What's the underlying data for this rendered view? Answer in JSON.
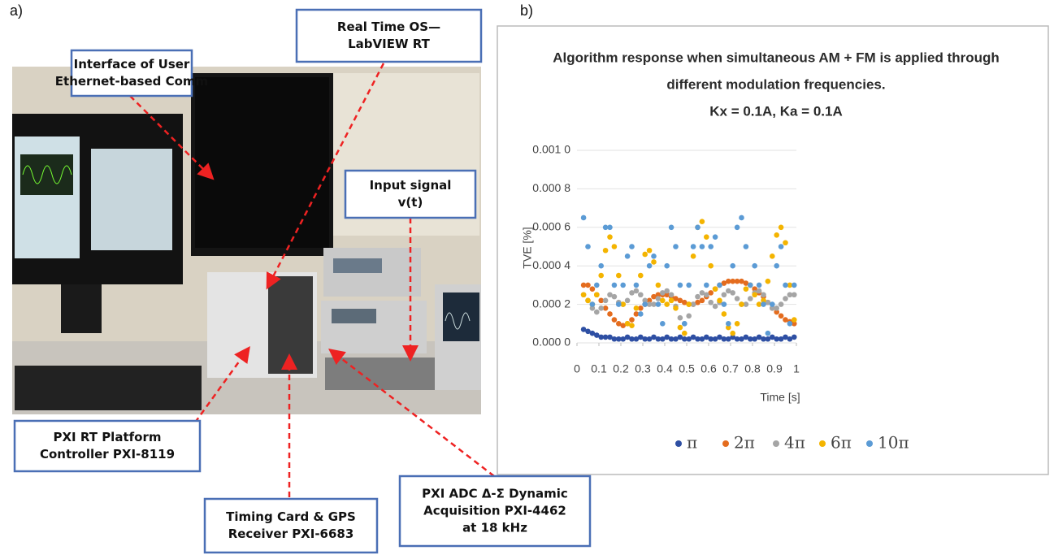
{
  "panels": [
    "a)",
    "b)"
  ],
  "annotations": [
    {
      "lines": [
        "Interface of User",
        "Ethernet-based Comm"
      ]
    },
    {
      "lines": [
        "Real Time OS—",
        "LabVIEW RT"
      ]
    },
    {
      "lines": [
        "Input signal",
        "v(t)"
      ]
    },
    {
      "lines": [
        "PXI RT Platform",
        "Controller PXI-8119"
      ]
    },
    {
      "lines": [
        "Timing Card & GPS",
        "Receiver PXI-6683"
      ]
    },
    {
      "lines": [
        "PXI ADC   Δ-Σ Dynamic",
        "Acquisition PXI-4462",
        "at 18 kHz"
      ]
    }
  ],
  "chart_data": {
    "type": "scatter",
    "title": [
      "Algorithm response when simultaneous AM + FM is applied through",
      "different modulation frequencies.",
      "Kx = 0.1A, Ka = 0.1A"
    ],
    "xlabel": "Time [s]",
    "ylabel": "TVE  [%]",
    "xlim": [
      0,
      1
    ],
    "xticks": [
      0,
      0.1,
      0.2,
      0.3,
      0.4,
      0.5,
      0.6,
      0.7,
      0.8,
      0.9,
      1
    ],
    "ylim": [
      0,
      0.001
    ],
    "yticks": [
      {
        "value": 0,
        "label": "0.000 0"
      },
      {
        "value": 0.0002,
        "label": "0.000 2"
      },
      {
        "value": 0.0004,
        "label": "0.000 4"
      },
      {
        "value": 0.0006,
        "label": "0.000 6"
      },
      {
        "value": 0.0008,
        "label": "0.000 8"
      },
      {
        "value": 0.001,
        "label": "0.001 0"
      }
    ],
    "grid": true,
    "legend": "bottom",
    "x": [
      0.03,
      0.05,
      0.07,
      0.09,
      0.11,
      0.13,
      0.15,
      0.17,
      0.19,
      0.21,
      0.23,
      0.25,
      0.27,
      0.29,
      0.31,
      0.33,
      0.35,
      0.37,
      0.39,
      0.41,
      0.43,
      0.45,
      0.47,
      0.49,
      0.51,
      0.53,
      0.55,
      0.57,
      0.59,
      0.61,
      0.63,
      0.65,
      0.67,
      0.69,
      0.71,
      0.73,
      0.75,
      0.77,
      0.79,
      0.81,
      0.83,
      0.85,
      0.87,
      0.89,
      0.91,
      0.93,
      0.95,
      0.97,
      0.99
    ],
    "series": [
      {
        "name": "π",
        "color": "#2e4fa3",
        "values": [
          7e-05,
          6e-05,
          5e-05,
          4e-05,
          3e-05,
          3e-05,
          3e-05,
          2e-05,
          2e-05,
          2e-05,
          3e-05,
          2e-05,
          2e-05,
          3e-05,
          2e-05,
          2e-05,
          3e-05,
          2e-05,
          2e-05,
          3e-05,
          2e-05,
          2e-05,
          3e-05,
          2e-05,
          2e-05,
          3e-05,
          2e-05,
          2e-05,
          3e-05,
          2e-05,
          2e-05,
          3e-05,
          2e-05,
          2e-05,
          3e-05,
          2e-05,
          2e-05,
          3e-05,
          2e-05,
          2e-05,
          3e-05,
          2e-05,
          2e-05,
          3e-05,
          2e-05,
          2e-05,
          3e-05,
          2e-05,
          3e-05
        ]
      },
      {
        "name": "2π",
        "color": "#e46c1e",
        "values": [
          0.0003,
          0.0003,
          0.00028,
          0.00025,
          0.00022,
          0.00018,
          0.00015,
          0.00012,
          0.0001,
          9e-05,
          0.0001,
          0.00012,
          0.00015,
          0.00018,
          0.0002,
          0.00022,
          0.00024,
          0.00025,
          0.00025,
          0.00025,
          0.00024,
          0.00023,
          0.00022,
          0.00021,
          0.0002,
          0.0002,
          0.00021,
          0.00022,
          0.00024,
          0.00026,
          0.00028,
          0.0003,
          0.00031,
          0.00032,
          0.00032,
          0.00032,
          0.00032,
          0.00031,
          0.0003,
          0.00028,
          0.00026,
          0.00024,
          0.00021,
          0.00018,
          0.00016,
          0.00014,
          0.00012,
          0.00011,
          0.0001
        ]
      },
      {
        "name": "4π",
        "color": "#a5a5a5",
        "values": [
          0.00025,
          0.00022,
          0.00018,
          0.00016,
          0.00018,
          0.00022,
          0.00025,
          0.00024,
          0.00021,
          0.0002,
          0.00022,
          0.00026,
          0.00027,
          0.00025,
          0.00022,
          0.0002,
          0.0002,
          0.00023,
          0.00026,
          0.00027,
          0.00025,
          0.00019,
          0.00013,
          0.0001,
          0.00014,
          0.0002,
          0.00024,
          0.00026,
          0.00025,
          0.00021,
          0.00019,
          0.00021,
          0.00025,
          0.00027,
          0.00026,
          0.00023,
          0.0002,
          0.0002,
          0.00023,
          0.00026,
          0.00027,
          0.00025,
          0.00021,
          0.00018,
          0.00018,
          0.0002,
          0.00023,
          0.00025,
          0.00025
        ]
      },
      {
        "name": "6π",
        "color": "#f4b400",
        "values": [
          0.00025,
          0.00022,
          0.0002,
          0.00025,
          0.00035,
          0.00048,
          0.00055,
          0.0005,
          0.00035,
          0.0002,
          0.0001,
          9e-05,
          0.00018,
          0.00035,
          0.00046,
          0.00048,
          0.00042,
          0.0003,
          0.00022,
          0.0002,
          0.00022,
          0.00018,
          8e-05,
          5e-05,
          0.0002,
          0.00045,
          0.0006,
          0.00063,
          0.00055,
          0.0004,
          0.00028,
          0.00022,
          0.00015,
          8e-05,
          5e-05,
          0.0001,
          0.0002,
          0.00028,
          0.0003,
          0.00025,
          0.0002,
          0.00022,
          0.00032,
          0.00045,
          0.00056,
          0.0006,
          0.00052,
          0.0003,
          0.00012
        ]
      },
      {
        "name": "10π",
        "color": "#5b9bd5",
        "values": [
          0.00065,
          0.0005,
          0.0002,
          0.0003,
          0.0004,
          0.0006,
          0.0006,
          0.0003,
          0.0002,
          0.0003,
          0.00045,
          0.0005,
          0.0003,
          0.00015,
          0.0002,
          0.0004,
          0.00045,
          0.0002,
          0.0001,
          0.0004,
          0.0006,
          0.0005,
          0.0003,
          0.0001,
          0.0003,
          0.0005,
          0.0006,
          0.0005,
          0.0003,
          0.0005,
          0.00055,
          0.0003,
          0.0002,
          0.0001,
          0.0004,
          0.0006,
          0.00065,
          0.0005,
          0.0003,
          0.0004,
          0.0003,
          0.0002,
          5e-05,
          0.0002,
          0.0004,
          0.0005,
          0.0003,
          0.0001,
          0.0003
        ]
      }
    ]
  }
}
